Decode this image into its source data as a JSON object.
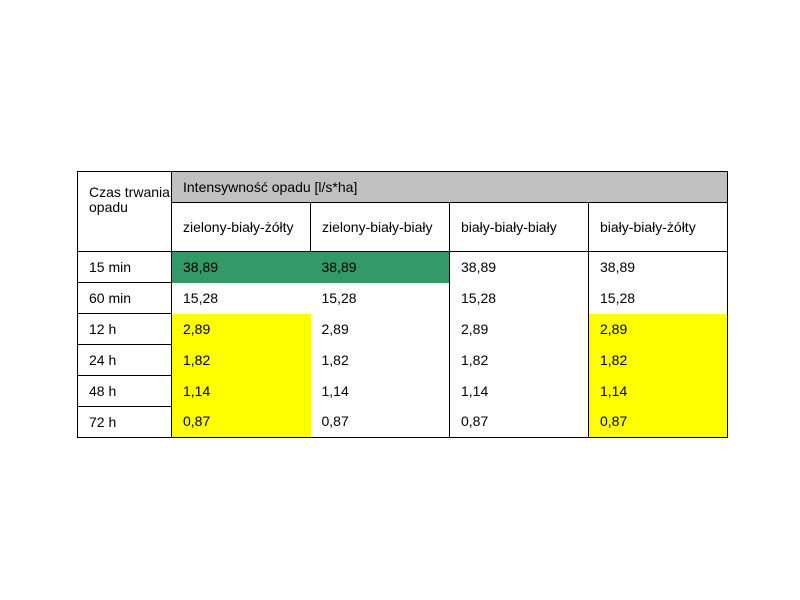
{
  "table": {
    "corner_label": "Czas trwania opadu",
    "group_header": "Intensywność opadu [l/s*ha]",
    "columns": [
      "zielony-biały-żółty",
      "zielony-biały-biały",
      "biały-biały-biały",
      "biały-biały-żółty"
    ],
    "rows": [
      {
        "label": "15 min",
        "values": [
          "38,89",
          "38,89",
          "38,89",
          "38,89"
        ]
      },
      {
        "label": "60 min",
        "values": [
          "15,28",
          "15,28",
          "15,28",
          "15,28"
        ]
      },
      {
        "label": "12 h",
        "values": [
          "2,89",
          "2,89",
          "2,89",
          "2,89"
        ]
      },
      {
        "label": "24 h",
        "values": [
          "1,82",
          "1,82",
          "1,82",
          "1,82"
        ]
      },
      {
        "label": "48 h",
        "values": [
          "1,14",
          "1,14",
          "1,14",
          "1,14"
        ]
      },
      {
        "label": "72 h",
        "values": [
          "0,87",
          "0,87",
          "0,87",
          "0,87"
        ]
      }
    ],
    "highlight_colors": {
      "green": "#339966",
      "yellow": "#ffff00",
      "header_gray": "#c0c0c0"
    }
  }
}
